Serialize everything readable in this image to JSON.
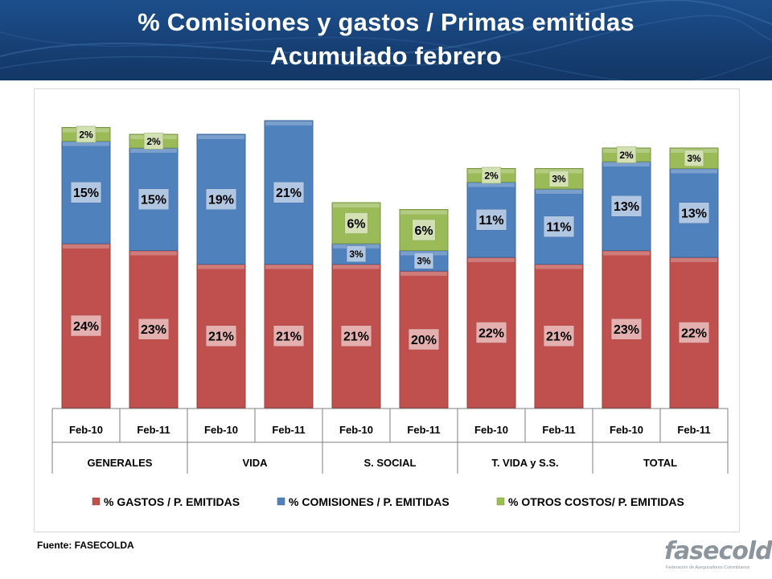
{
  "header": {
    "title_line1": "% Comisiones y gastos / Primas emitidas",
    "title_line2": "Acumulado febrero"
  },
  "source": "Fuente: FASECOLDA",
  "logo": {
    "text": "fasecolda",
    "subtitle": "Federación de Aseguradores Colombianos"
  },
  "colors": {
    "gastos": "#c0504d",
    "comisiones": "#4f81bd",
    "otros": "#9bbb59",
    "header": "#1d4f8c"
  },
  "chart_data": {
    "type": "bar",
    "stacked": true,
    "categories": [
      "Feb-10",
      "Feb-11",
      "Feb-10",
      "Feb-11",
      "Feb-10",
      "Feb-11",
      "Feb-10",
      "Feb-11",
      "Feb-10",
      "Feb-11"
    ],
    "groups": [
      "GENERALES",
      "VIDA",
      "S. SOCIAL",
      "T. VIDA y S.S.",
      "TOTAL"
    ],
    "series": [
      {
        "name": "% GASTOS / P. EMITIDAS",
        "color": "#c0504d",
        "values": [
          24,
          23,
          21,
          21,
          21,
          20,
          22,
          21,
          23,
          22
        ],
        "labels": [
          "24%",
          "23%",
          "21%",
          "21%",
          "21%",
          "20%",
          "22%",
          "21%",
          "23%",
          "22%"
        ]
      },
      {
        "name": "% COMISIONES /  P. EMITIDAS",
        "color": "#4f81bd",
        "values": [
          15,
          15,
          19,
          21,
          3,
          3,
          11,
          11,
          13,
          13
        ],
        "labels": [
          "15%",
          "15%",
          "19%",
          "21%",
          "3%",
          "3%",
          "11%",
          "11%",
          "13%",
          "13%"
        ]
      },
      {
        "name": "% OTROS COSTOS/ P. EMITIDAS",
        "color": "#9bbb59",
        "values": [
          2,
          2,
          0,
          0,
          6,
          6,
          2,
          3,
          2,
          3
        ],
        "labels": [
          "2%",
          "2%",
          "",
          "",
          "6%",
          "6%",
          "2%",
          "3%",
          "2%",
          "3%"
        ]
      }
    ],
    "legend_position": "bottom",
    "grid": false
  }
}
